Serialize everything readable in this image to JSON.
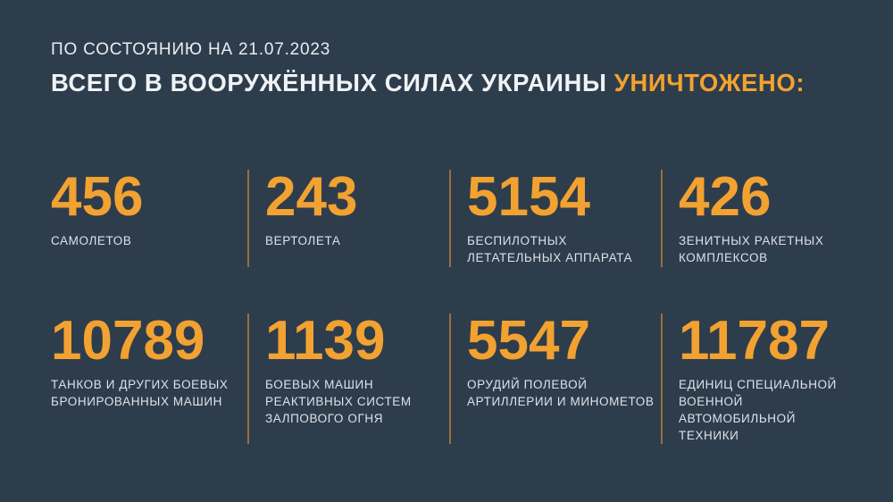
{
  "page": {
    "background_color": "#2e3d4c",
    "accent_color": "#f2a231",
    "divider_color": "#97713f",
    "text_color": "#f0f3f5"
  },
  "header": {
    "date_line": "ПО СОСТОЯНИЮ НА 21.07.2023",
    "title_main": "ВСЕГО В ВООРУЖЁННЫХ СИЛАХ УКРАИНЫ ",
    "title_accent": "УНИЧТОЖЕНО:"
  },
  "stats": [
    {
      "value": "456",
      "label": "САМОЛЕТОВ"
    },
    {
      "value": "243",
      "label": "ВЕРТОЛЕТА"
    },
    {
      "value": "5154",
      "label": "БЕСПИЛОТНЫХ\nЛЕТАТЕЛЬНЫХ АППАРАТА"
    },
    {
      "value": "426",
      "label": "ЗЕНИТНЫХ РАКЕТНЫХ\nКОМПЛЕКСОВ"
    },
    {
      "value": "10789",
      "label": "ТАНКОВ И ДРУГИХ БОЕВЫХ\nБРОНИРОВАННЫХ МАШИН"
    },
    {
      "value": "1139",
      "label": "БОЕВЫХ МАШИН\nРЕАКТИВНЫХ СИСТЕМ\nЗАЛПОВОГО ОГНЯ"
    },
    {
      "value": "5547",
      "label": "ОРУДИЙ ПОЛЕВОЙ\nАРТИЛЛЕРИИ И МИНОМЕТОВ"
    },
    {
      "value": "11787",
      "label": "ЕДИНИЦ СПЕЦИАЛЬНОЙ\nВОЕННОЙ АВТОМОБИЛЬНОЙ\nТЕХНИКИ"
    }
  ],
  "chart_data": {
    "type": "table",
    "title": "ВСЕГО В ВООРУЖЁННЫХ СИЛАХ УКРАИНЫ УНИЧТОЖЕНО:",
    "subtitle": "ПО СОСТОЯНИЮ НА 21.07.2023",
    "categories": [
      "самолетов",
      "вертолета",
      "беспилотных летательных аппарата",
      "зенитных ракетных комплексов",
      "танков и других боевых бронированных машин",
      "боевых машин реактивных систем залпового огня",
      "орудий полевой артиллерии и минометов",
      "единиц специальной военной автомобильной техники"
    ],
    "values": [
      456,
      243,
      5154,
      426,
      10789,
      1139,
      5547,
      11787
    ],
    "layout": "2 rows x 4 columns stat grid, values in orange above uppercase labels"
  }
}
